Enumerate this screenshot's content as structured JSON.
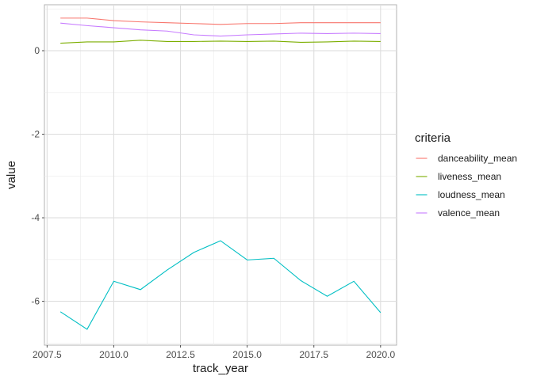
{
  "chart_data": {
    "type": "line",
    "xlabel": "track_year",
    "ylabel": "value",
    "xlim": [
      2007.4,
      2020.6
    ],
    "ylim": [
      -7.05,
      1.1
    ],
    "x_ticks": [
      2007.5,
      2010.0,
      2012.5,
      2015.0,
      2017.5,
      2020.0
    ],
    "x_tick_labels": [
      "2007.5",
      "2010.0",
      "2012.5",
      "2015.0",
      "2017.5",
      "2020.0"
    ],
    "y_ticks": [
      -6,
      -4,
      -2,
      0
    ],
    "y_tick_labels": [
      "-6",
      "-4",
      "-2",
      "0"
    ],
    "grid": true,
    "legend": {
      "title": "criteria",
      "placement": "right"
    },
    "x": [
      2008,
      2009,
      2010,
      2011,
      2012,
      2013,
      2014,
      2015,
      2016,
      2017,
      2018,
      2019,
      2020
    ],
    "series": [
      {
        "name": "danceability_mean",
        "color": "#F8766D",
        "values": [
          0.78,
          0.78,
          0.72,
          0.69,
          0.67,
          0.65,
          0.63,
          0.65,
          0.65,
          0.67,
          0.67,
          0.67,
          0.67
        ]
      },
      {
        "name": "liveness_mean",
        "color": "#7CAE00",
        "values": [
          0.18,
          0.21,
          0.21,
          0.25,
          0.22,
          0.22,
          0.23,
          0.22,
          0.23,
          0.2,
          0.21,
          0.23,
          0.22
        ]
      },
      {
        "name": "loudness_mean",
        "color": "#00BFC4",
        "values": [
          -6.25,
          -6.67,
          -5.52,
          -5.72,
          -5.25,
          -4.83,
          -4.55,
          -5.01,
          -4.97,
          -5.5,
          -5.88,
          -5.52,
          -6.27
        ]
      },
      {
        "name": "valence_mean",
        "color": "#C77CFF",
        "values": [
          0.66,
          0.6,
          0.55,
          0.5,
          0.47,
          0.38,
          0.35,
          0.38,
          0.4,
          0.42,
          0.41,
          0.42,
          0.41
        ]
      }
    ]
  }
}
